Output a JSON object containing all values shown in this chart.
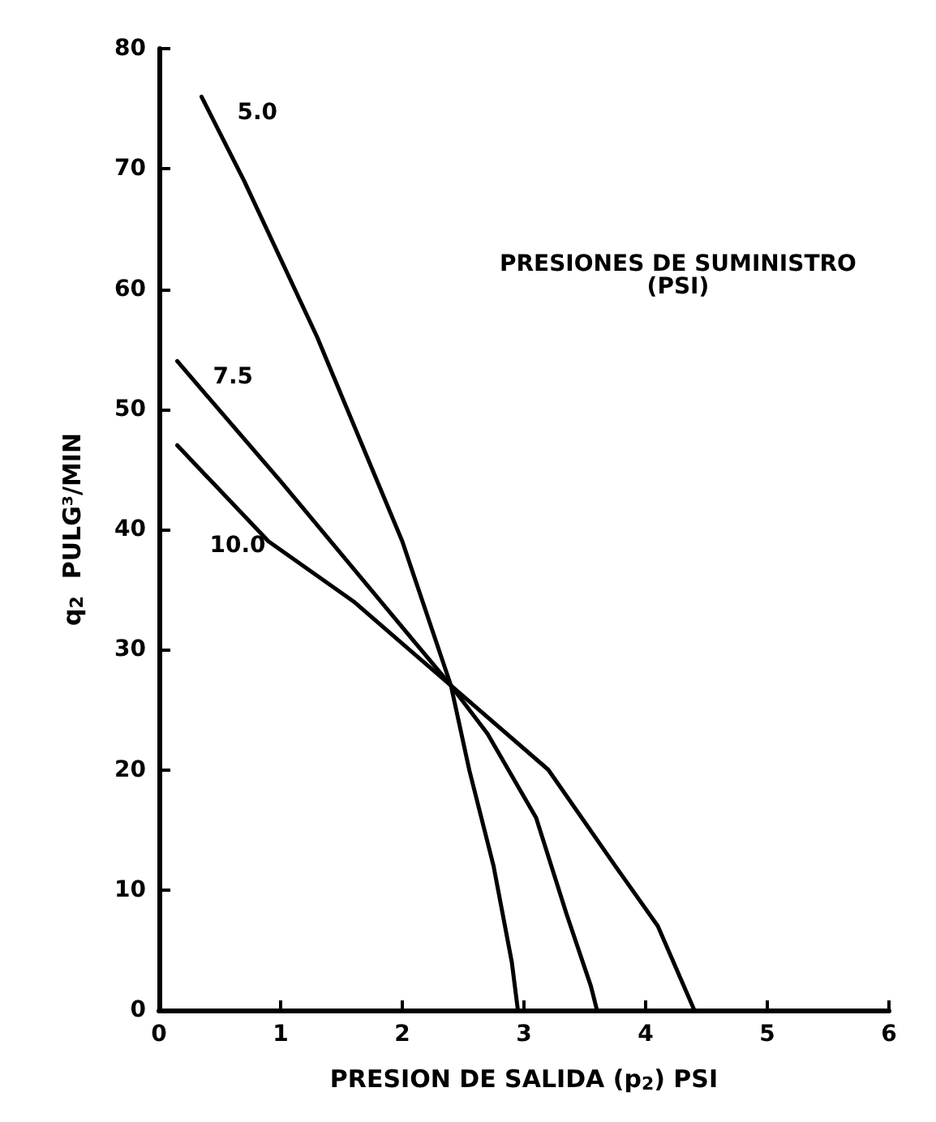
{
  "chart_data": {
    "type": "line",
    "xlabel": "PRESION DE SALIDA (p$_{2}$) PSI",
    "ylabel": "q$_{2}$  PULG³/MIN",
    "annotations": [
      "PRESIONES DE SUMINISTRO\n(PSI)"
    ],
    "xlim": [
      0,
      6
    ],
    "xticks": [
      0,
      1,
      2,
      3,
      4,
      5,
      6
    ],
    "ylim": [
      0,
      80
    ],
    "yticks": [
      0,
      10,
      20,
      30,
      40,
      50,
      60,
      70,
      80
    ],
    "grid": false,
    "legend": false,
    "marker": "none",
    "line_style": "solid",
    "series": [
      {
        "name": "5.0",
        "color": "#000000",
        "x": [
          0.35,
          0.7,
          1.3,
          2.0,
          2.4,
          2.55,
          2.75,
          2.9,
          2.95
        ],
        "values": [
          76,
          69,
          56,
          39,
          27,
          20,
          12,
          4,
          0
        ]
      },
      {
        "name": "7.5",
        "color": "#000000",
        "x": [
          0.15,
          1.0,
          2.4,
          2.7,
          3.1,
          3.35,
          3.55,
          3.6
        ],
        "values": [
          54,
          44,
          27,
          23,
          16,
          8,
          2,
          0
        ]
      },
      {
        "name": "10.0",
        "color": "#000000",
        "x": [
          0.15,
          0.9,
          1.6,
          2.4,
          3.2,
          3.75,
          4.1,
          4.4
        ],
        "values": [
          47,
          39,
          34,
          27,
          20,
          12,
          7,
          0
        ]
      }
    ]
  }
}
